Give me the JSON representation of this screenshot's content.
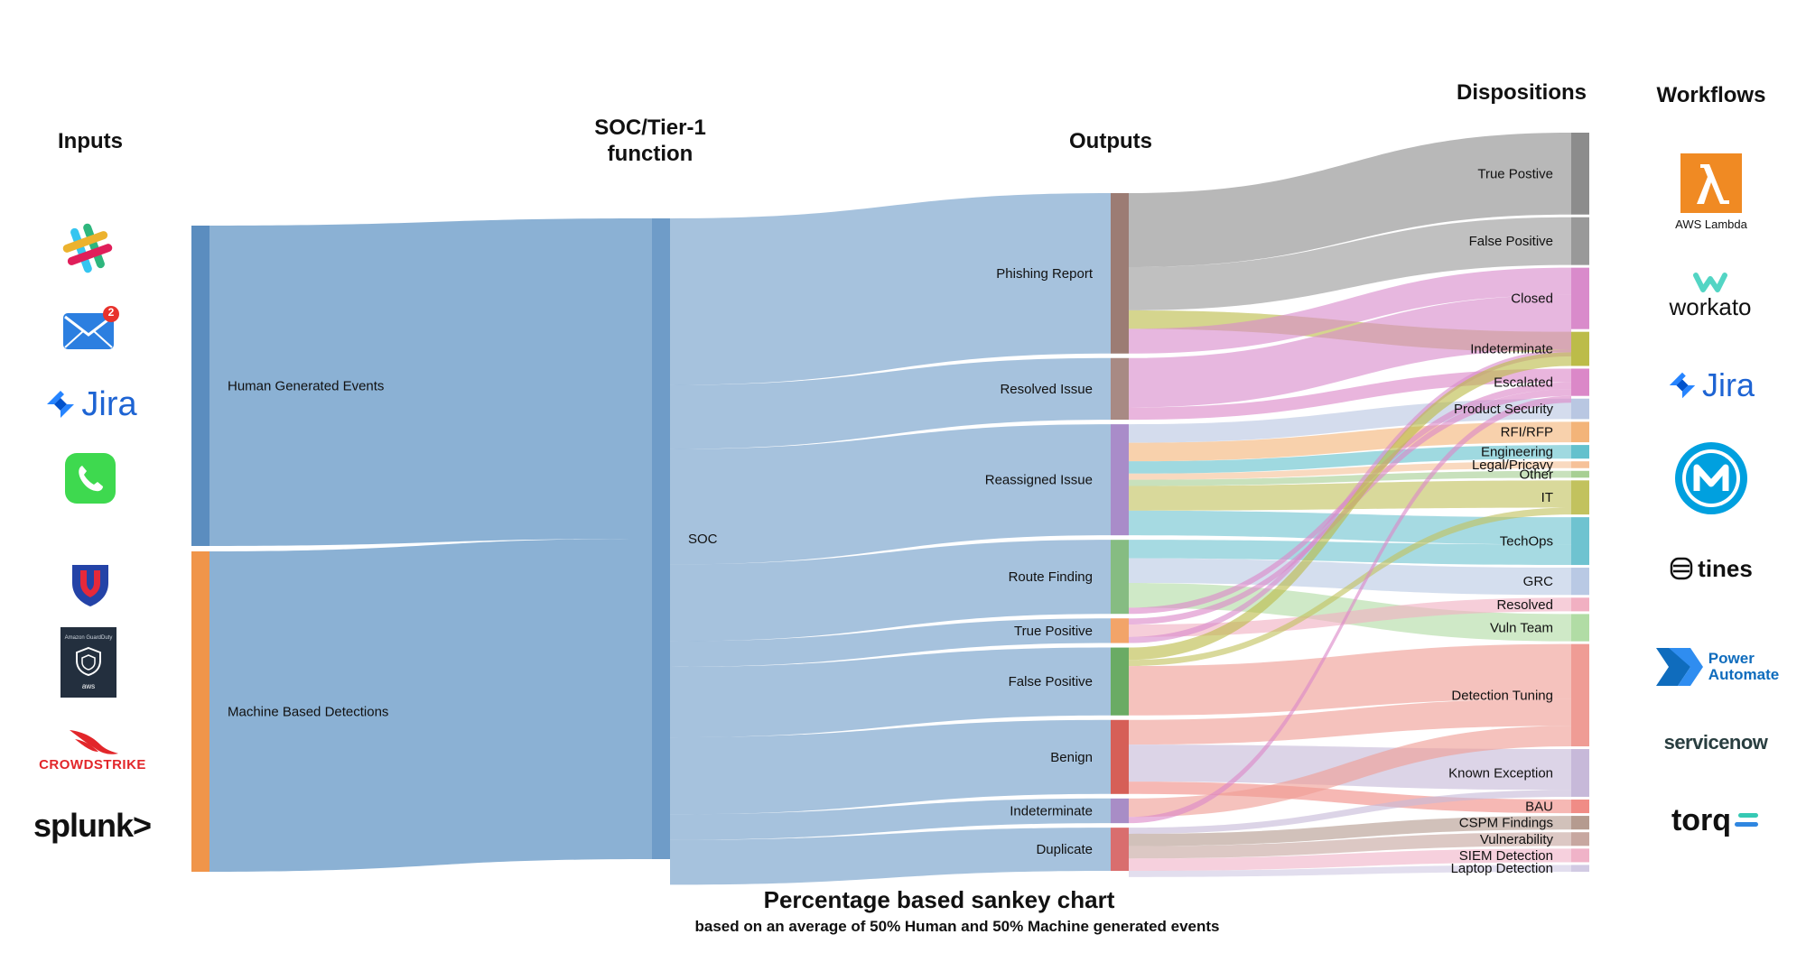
{
  "headers": {
    "inputs": "Inputs",
    "soc": "SOC/Tier-1\nfunction",
    "outputs": "Outputs",
    "dispositions": "Dispositions",
    "workflows": "Workflows"
  },
  "footer": {
    "title": "Percentage based sankey chart",
    "subtitle": "based on an average of 50% Human and 50% Machine generated events"
  },
  "inputs": [
    {
      "name": "slack-icon"
    },
    {
      "name": "mail-icon",
      "badge": "2"
    },
    {
      "name": "jira-logo",
      "text": "Jira"
    },
    {
      "name": "phone-icon"
    },
    {
      "name": "shield-u-icon"
    },
    {
      "name": "amazon-guardduty-icon",
      "text": "Amazon GuardDuty",
      "sub": "aws"
    },
    {
      "name": "crowdstrike-logo",
      "text": "CROWDSTRIKE"
    },
    {
      "name": "splunk-logo",
      "text": "splunk>"
    }
  ],
  "workflows": [
    {
      "name": "aws-lambda-logo",
      "text": "AWS Lambda"
    },
    {
      "name": "workato-logo",
      "text": "workato"
    },
    {
      "name": "jira-logo",
      "text": "Jira"
    },
    {
      "name": "mulesoft-logo"
    },
    {
      "name": "tines-logo",
      "text": "tines"
    },
    {
      "name": "power-automate-logo",
      "text": "Power\nAutomate"
    },
    {
      "name": "servicenow-logo",
      "text": "servicenow"
    },
    {
      "name": "torq-logo",
      "text": "torq"
    }
  ],
  "chart_data": {
    "type": "sankey",
    "title": "Percentage based sankey chart",
    "subtitle": "based on an average of 50% Human and 50% Machine generated events",
    "columns": [
      "Inputs",
      "SOC/Tier-1 function",
      "Outputs",
      "Dispositions",
      "Workflows"
    ],
    "nodes": {
      "inputs": [
        {
          "label": "Human Generated Events",
          "value": 50,
          "color": "#5b8dbf"
        },
        {
          "label": "Machine Based Detections",
          "value": 50,
          "color": "#f0954a"
        }
      ],
      "soc": [
        {
          "label": "SOC",
          "value": 100,
          "color": "#6f9cc8"
        }
      ],
      "outputs": [
        {
          "label": "Phishing Report",
          "value": 26,
          "color": "#9c7c74"
        },
        {
          "label": "Resolved Issue",
          "value": 10,
          "color": "#a88a84"
        },
        {
          "label": "Reassigned Issue",
          "value": 18,
          "color": "#a98cc9"
        },
        {
          "label": "Route Finding",
          "value": 12,
          "color": "#86bc82"
        },
        {
          "label": "True Positive",
          "value": 4,
          "color": "#f2a469"
        },
        {
          "label": "False Positive",
          "value": 11,
          "color": "#6aab64"
        },
        {
          "label": "Benign",
          "value": 12,
          "color": "#d65f57"
        },
        {
          "label": "Indeterminate",
          "value": 4,
          "color": "#a88dc6"
        },
        {
          "label": "Duplicate",
          "value": 7,
          "color": "#d96e6e"
        }
      ],
      "dispositions": [
        {
          "label": "True Postive",
          "value": 12,
          "color": "#8c8c8c"
        },
        {
          "label": "False Positive",
          "value": 7,
          "color": "#999999"
        },
        {
          "label": "Closed",
          "value": 9,
          "color": "#d98bcb"
        },
        {
          "label": "Indeterminate",
          "value": 5,
          "color": "#bcbc49"
        },
        {
          "label": "Escalated",
          "value": 4,
          "color": "#db88c8"
        },
        {
          "label": "Product Security",
          "value": 3,
          "color": "#b9c7e2"
        },
        {
          "label": "RFI/RFP",
          "value": 3,
          "color": "#f3b479"
        },
        {
          "label": "Engineering",
          "value": 2,
          "color": "#64c1cd"
        },
        {
          "label": "Legal/Pricavy",
          "value": 1,
          "color": "#f6c198"
        },
        {
          "label": "Other",
          "value": 1,
          "color": "#a7cf93"
        },
        {
          "label": "IT",
          "value": 5,
          "color": "#c2c25e"
        },
        {
          "label": "TechOps",
          "value": 7,
          "color": "#6fc3d0"
        },
        {
          "label": "GRC",
          "value": 4,
          "color": "#b9c9e4"
        },
        {
          "label": "Resolved",
          "value": 2,
          "color": "#f1b0c2"
        },
        {
          "label": "Vuln Team",
          "value": 4,
          "color": "#b1dca5"
        },
        {
          "label": "Detection Tuning",
          "value": 15,
          "color": "#ef9c95"
        },
        {
          "label": "Known Exception",
          "value": 7,
          "color": "#c7b9d9"
        },
        {
          "label": "BAU",
          "value": 2,
          "color": "#f08c86"
        },
        {
          "label": "CSPM Findings",
          "value": 2,
          "color": "#b59b8f"
        },
        {
          "label": "Vulnerability",
          "value": 2,
          "color": "#c7a7a0"
        },
        {
          "label": "SIEM Detection",
          "value": 2,
          "color": "#f0b3c8"
        },
        {
          "label": "Laptop Detection",
          "value": 1,
          "color": "#d1cae3"
        }
      ]
    },
    "links": [
      {
        "source": "Human Generated Events",
        "target": "SOC",
        "value": 50
      },
      {
        "source": "Machine Based Detections",
        "target": "SOC",
        "value": 50
      },
      {
        "source": "SOC",
        "target": "Phishing Report",
        "value": 26
      },
      {
        "source": "SOC",
        "target": "Resolved Issue",
        "value": 10
      },
      {
        "source": "SOC",
        "target": "Reassigned Issue",
        "value": 18
      },
      {
        "source": "SOC",
        "target": "Route Finding",
        "value": 12
      },
      {
        "source": "SOC",
        "target": "True Positive",
        "value": 4
      },
      {
        "source": "SOC",
        "target": "False Positive",
        "value": 11
      },
      {
        "source": "SOC",
        "target": "Benign",
        "value": 12
      },
      {
        "source": "SOC",
        "target": "Indeterminate",
        "value": 4
      },
      {
        "source": "SOC",
        "target": "Duplicate",
        "value": 7
      },
      {
        "source": "Phishing Report",
        "target": "True Postive",
        "value": 12
      },
      {
        "source": "Phishing Report",
        "target": "False Positive",
        "value": 7
      },
      {
        "source": "Phishing Report",
        "target": "Indeterminate",
        "value": 3
      },
      {
        "source": "Phishing Report",
        "target": "Closed",
        "value": 4
      },
      {
        "source": "Resolved Issue",
        "target": "Closed",
        "value": 8
      },
      {
        "source": "Resolved Issue",
        "target": "Escalated",
        "value": 2
      },
      {
        "source": "Reassigned Issue",
        "target": "Product Security",
        "value": 3
      },
      {
        "source": "Reassigned Issue",
        "target": "RFI/RFP",
        "value": 3
      },
      {
        "source": "Reassigned Issue",
        "target": "Engineering",
        "value": 2
      },
      {
        "source": "Reassigned Issue",
        "target": "Legal/Pricavy",
        "value": 1
      },
      {
        "source": "Reassigned Issue",
        "target": "Other",
        "value": 1
      },
      {
        "source": "Reassigned Issue",
        "target": "IT",
        "value": 4
      },
      {
        "source": "Reassigned Issue",
        "target": "TechOps",
        "value": 4
      },
      {
        "source": "Route Finding",
        "target": "TechOps",
        "value": 3
      },
      {
        "source": "Route Finding",
        "target": "GRC",
        "value": 4
      },
      {
        "source": "Route Finding",
        "target": "Vuln Team",
        "value": 4
      },
      {
        "source": "Route Finding",
        "target": "Escalated",
        "value": 1
      },
      {
        "source": "True Positive",
        "target": "Escalated",
        "value": 1
      },
      {
        "source": "True Positive",
        "target": "Resolved",
        "value": 2
      },
      {
        "source": "True Positive",
        "target": "Closed",
        "value": 1
      },
      {
        "source": "False Positive",
        "target": "Indeterminate",
        "value": 2
      },
      {
        "source": "False Positive",
        "target": "IT",
        "value": 1
      },
      {
        "source": "False Positive",
        "target": "Detection Tuning",
        "value": 8
      },
      {
        "source": "Benign",
        "target": "Detection Tuning",
        "value": 4
      },
      {
        "source": "Benign",
        "target": "Known Exception",
        "value": 6
      },
      {
        "source": "Benign",
        "target": "BAU",
        "value": 2
      },
      {
        "source": "Indeterminate",
        "target": "Detection Tuning",
        "value": 3
      },
      {
        "source": "Indeterminate",
        "target": "Escalated",
        "value": 1
      },
      {
        "source": "Duplicate",
        "target": "Known Exception",
        "value": 1
      },
      {
        "source": "Duplicate",
        "target": "CSPM Findings",
        "value": 2
      },
      {
        "source": "Duplicate",
        "target": "Vulnerability",
        "value": 2
      },
      {
        "source": "Duplicate",
        "target": "SIEM Detection",
        "value": 2
      },
      {
        "source": "Duplicate",
        "target": "Laptop Detection",
        "value": 1
      }
    ]
  }
}
